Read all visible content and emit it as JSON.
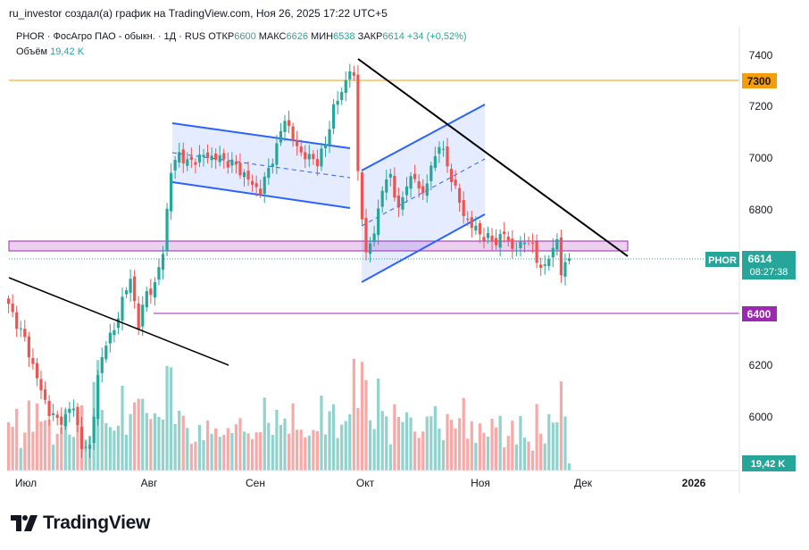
{
  "credit": "ru_investor создал(а) график на TradingView.com, Ноя 26, 2025 17:22 UTC+5",
  "legend": {
    "symbol_line": "PHOR · ФосАгро ПАО - обыкн. · 1Д · RUS",
    "open_label": "ОТКР",
    "open": "6600",
    "high_label": "МАКС",
    "high": "6626",
    "low_label": "МИН",
    "low": "6538",
    "close_label": "ЗАКР",
    "close": "6614",
    "change": "+34 (+0,52%)",
    "volume_label": "Объём",
    "volume": "19,42 K"
  },
  "price_scale": {
    "ticks": [
      "7400",
      "7200",
      "7000",
      "6800",
      "6600",
      "6400",
      "6200",
      "6000"
    ],
    "level_7300": "7300",
    "level_6400": "6400",
    "symbol_badge": "PHOR",
    "last_price": "6614",
    "countdown": "08:27:38",
    "volume_badge": "19,42 K"
  },
  "time_scale": {
    "labels": [
      "Июл",
      "Авг",
      "Сен",
      "Окт",
      "Ноя",
      "Дек",
      "2026"
    ]
  },
  "brand": "TradingView",
  "colors": {
    "up": "#26a69a",
    "down": "#ef5350",
    "channel": "#2962ff",
    "level_orange": "#f59d0a",
    "level_purple": "#9c27b0",
    "zone": "#e1bee7"
  },
  "chart_data": {
    "type": "candlestick",
    "symbol": "PHOR",
    "interval": "1Д",
    "x_axis": [
      "Июл",
      "Авг",
      "Сен",
      "Окт",
      "Ноя",
      "Дек",
      "2026"
    ],
    "y_ticks": [
      6000,
      6200,
      6400,
      6600,
      6800,
      7000,
      7200,
      7400
    ],
    "ylim": [
      5800,
      7430
    ],
    "horizontal_levels": [
      7300,
      6400
    ],
    "zone": [
      6640,
      6675
    ],
    "last": {
      "open": 6600,
      "high": 6626,
      "low": 6538,
      "close": 6614,
      "change": 34,
      "change_pct": 0.52
    },
    "close_path": [
      [
        0,
        6430
      ],
      [
        4,
        6300
      ],
      [
        7,
        6150
      ],
      [
        10,
        6020
      ],
      [
        12,
        5990
      ],
      [
        14,
        6000
      ],
      [
        16,
        6050
      ],
      [
        18,
        5880
      ],
      [
        20,
        5890
      ],
      [
        22,
        6150
      ],
      [
        24,
        6300
      ],
      [
        26,
        6330
      ],
      [
        28,
        6460
      ],
      [
        30,
        6530
      ],
      [
        32,
        6360
      ],
      [
        34,
        6480
      ],
      [
        36,
        6510
      ],
      [
        38,
        6640
      ],
      [
        39,
        6800
      ],
      [
        40,
        6950
      ],
      [
        42,
        7020
      ],
      [
        44,
        6980
      ],
      [
        48,
        7010
      ],
      [
        52,
        7000
      ],
      [
        56,
        6970
      ],
      [
        60,
        6900
      ],
      [
        62,
        6870
      ],
      [
        64,
        6960
      ],
      [
        66,
        7040
      ],
      [
        68,
        7160
      ],
      [
        70,
        7070
      ],
      [
        72,
        7020
      ],
      [
        74,
        7000
      ],
      [
        76,
        6990
      ],
      [
        78,
        7050
      ],
      [
        80,
        7200
      ],
      [
        82,
        7250
      ],
      [
        84,
        7350
      ],
      [
        85,
        7300
      ],
      [
        86,
        6950
      ],
      [
        88,
        6620
      ],
      [
        90,
        6720
      ],
      [
        92,
        6880
      ],
      [
        94,
        6940
      ],
      [
        96,
        6790
      ],
      [
        98,
        6910
      ],
      [
        100,
        6920
      ],
      [
        102,
        6860
      ],
      [
        104,
        6960
      ],
      [
        106,
        7060
      ],
      [
        108,
        6970
      ],
      [
        110,
        6880
      ],
      [
        112,
        6780
      ],
      [
        114,
        6740
      ],
      [
        116,
        6710
      ],
      [
        118,
        6690
      ],
      [
        120,
        6680
      ],
      [
        122,
        6710
      ],
      [
        124,
        6650
      ],
      [
        126,
        6660
      ],
      [
        128,
        6700
      ],
      [
        130,
        6600
      ],
      [
        132,
        6580
      ],
      [
        134,
        6650
      ],
      [
        135,
        6690
      ],
      [
        136,
        6560
      ],
      [
        137,
        6580
      ],
      [
        138,
        6614
      ]
    ],
    "drawings": {
      "flag_channel": [
        [
          6920,
          7120,
          0
        ],
        [
          6790,
          7040,
          0
        ]
      ],
      "rising_channel": [
        [
          6550,
          6950,
          0
        ],
        [
          6800,
          7210,
          0
        ]
      ],
      "downtrend_line": [
        7390,
        6610
      ],
      "early_downtrend_line": [
        6590,
        6200
      ]
    }
  }
}
